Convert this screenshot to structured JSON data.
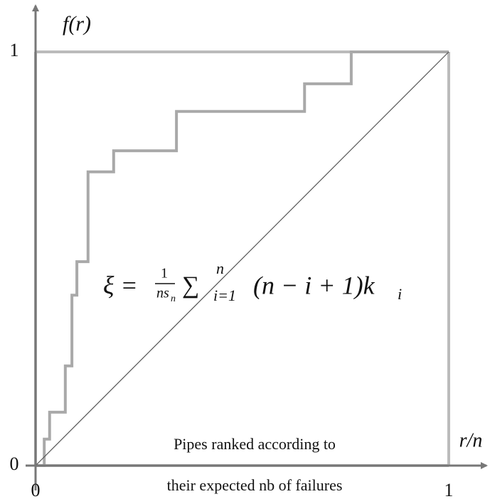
{
  "chart_data": {
    "type": "line",
    "y_label": "f(r)",
    "x_label": "r/n",
    "xlim": [
      0,
      1
    ],
    "ylim": [
      0,
      1
    ],
    "xticks": [
      0,
      1
    ],
    "yticks": [
      0,
      1
    ],
    "series": [
      {
        "color": "#a9a9a9",
        "x": [
          0,
          0.021,
          0.021,
          0.034,
          0.034,
          0.072,
          0.072,
          0.088,
          0.088,
          0.1,
          0.1,
          0.127,
          0.127,
          0.189,
          0.189,
          0.341,
          0.341,
          0.651,
          0.651,
          0.764,
          0.764,
          1
        ],
        "values": [
          0,
          0,
          0.064,
          0.064,
          0.129,
          0.129,
          0.241,
          0.241,
          0.412,
          0.412,
          0.493,
          0.493,
          0.71,
          0.71,
          0.761,
          0.761,
          0.856,
          0.856,
          0.923,
          0.923,
          1,
          1
        ]
      },
      {
        "color": "#555555",
        "x": [
          0,
          1
        ],
        "values": [
          0,
          1
        ]
      }
    ],
    "annotation": [
      "Pipes ranked according to",
      "their expected nb of failures"
    ],
    "formula": {
      "lhs": "ξ =",
      "num": "1",
      "den": "ns",
      "den_sub": "n",
      "sum": "∑",
      "sum_sup": "n",
      "sum_sub": "i=1",
      "body": "(n − i + 1)k",
      "body_sub": "i"
    }
  }
}
